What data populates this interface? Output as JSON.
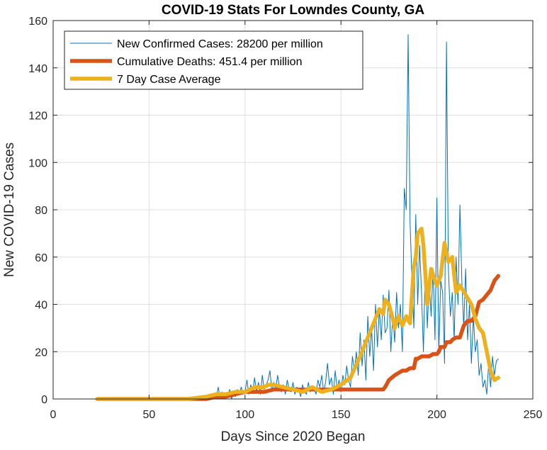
{
  "chart_data": {
    "type": "line",
    "title": "COVID-19 Stats For Lowndes County, GA",
    "xlabel": "Days Since 2020 Began",
    "ylabel": "New COVID-19 Cases",
    "xlim": [
      0,
      250
    ],
    "ylim": [
      0,
      160
    ],
    "xticks": [
      0,
      50,
      100,
      150,
      200,
      250
    ],
    "yticks": [
      0,
      20,
      40,
      60,
      80,
      100,
      120,
      140,
      160
    ],
    "grid": true,
    "legend_position": "top-left",
    "series": [
      {
        "name": "New Confirmed Cases: 28200 per million",
        "color": "#0072BD",
        "line_style": "thin",
        "x": [
          23,
          30,
          40,
          50,
          60,
          70,
          75,
          80,
          84,
          85,
          86,
          87,
          88,
          89,
          90,
          91,
          92,
          93,
          94,
          95,
          96,
          97,
          98,
          99,
          100,
          101,
          102,
          103,
          104,
          105,
          106,
          107,
          108,
          109,
          110,
          111,
          112,
          113,
          114,
          115,
          116,
          117,
          118,
          119,
          120,
          121,
          122,
          123,
          124,
          125,
          126,
          127,
          128,
          129,
          130,
          131,
          132,
          133,
          134,
          135,
          136,
          137,
          138,
          139,
          140,
          141,
          142,
          143,
          144,
          145,
          146,
          147,
          148,
          149,
          150,
          151,
          152,
          153,
          154,
          155,
          156,
          157,
          158,
          159,
          160,
          161,
          162,
          163,
          164,
          165,
          166,
          167,
          168,
          169,
          170,
          171,
          172,
          173,
          174,
          175,
          176,
          177,
          178,
          179,
          180,
          181,
          182,
          183,
          184,
          185,
          186,
          187,
          188,
          189,
          190,
          191,
          192,
          193,
          194,
          195,
          196,
          197,
          198,
          199,
          200,
          201,
          202,
          203,
          204,
          205,
          206,
          207,
          208,
          209,
          210,
          211,
          212,
          213,
          214,
          215,
          216,
          217,
          218,
          219,
          220,
          221,
          222,
          223,
          224,
          225,
          226,
          227,
          228,
          229,
          230,
          231,
          232
        ],
        "values": [
          0,
          0,
          0,
          0,
          0,
          0,
          0,
          0,
          2,
          0,
          5,
          1,
          3,
          0,
          2,
          1,
          4,
          0,
          3,
          1,
          4,
          2,
          5,
          2,
          3,
          8,
          2,
          6,
          3,
          9,
          3,
          7,
          2,
          10,
          4,
          6,
          8,
          12,
          3,
          7,
          4,
          10,
          5,
          3,
          6,
          2,
          8,
          4,
          3,
          7,
          2,
          5,
          4,
          1,
          6,
          3,
          2,
          7,
          3,
          5,
          4,
          2,
          8,
          5,
          10,
          3,
          7,
          15,
          6,
          9,
          2,
          12,
          4,
          8,
          3,
          10,
          6,
          14,
          8,
          5,
          18,
          12,
          20,
          10,
          28,
          14,
          25,
          8,
          35,
          18,
          30,
          12,
          40,
          22,
          38,
          25,
          44,
          28,
          30,
          46,
          20,
          36,
          24,
          45,
          30,
          40,
          20,
          89,
          80,
          154,
          75,
          50,
          30,
          78,
          40,
          65,
          45,
          20,
          60,
          30,
          50,
          35,
          55,
          25,
          85,
          20,
          50,
          45,
          15,
          151,
          55,
          35,
          45,
          25,
          60,
          40,
          82,
          50,
          30,
          55,
          25,
          40,
          15,
          35,
          20,
          25,
          10,
          15,
          5,
          8,
          2,
          15,
          5,
          18,
          10,
          16,
          17
        ]
      },
      {
        "name": "Cumulative Deaths: 451.4 per million",
        "color": "#D95319",
        "line_style": "thick",
        "x": [
          23,
          70,
          80,
          85,
          90,
          95,
          100,
          105,
          110,
          115,
          120,
          150,
          172,
          173,
          175,
          178,
          180,
          182,
          184,
          186,
          188,
          189,
          190,
          192,
          194,
          196,
          198,
          200,
          201,
          202,
          204,
          205,
          207,
          208,
          210,
          212,
          214,
          215,
          216,
          218,
          220,
          221,
          222,
          224,
          226,
          228,
          230,
          232
        ],
        "values": [
          0,
          0,
          0,
          1,
          1,
          2,
          3,
          3,
          3,
          4,
          4,
          4,
          4,
          5,
          8,
          10,
          11,
          12,
          12,
          13,
          13,
          17,
          17,
          18,
          18,
          18,
          19,
          19,
          20,
          22,
          22,
          24,
          24,
          25,
          26,
          26,
          31,
          32,
          33,
          33,
          35,
          38,
          41,
          42,
          44,
          46,
          50,
          52
        ]
      },
      {
        "name": "7 Day Case Average",
        "color": "#EDB120",
        "line_style": "thick",
        "x": [
          23,
          70,
          80,
          85,
          90,
          95,
          100,
          105,
          110,
          112,
          115,
          120,
          125,
          130,
          135,
          140,
          145,
          150,
          155,
          160,
          163,
          165,
          167,
          170,
          172,
          173,
          175,
          177,
          178,
          180,
          182,
          184,
          186,
          188,
          189,
          190,
          192,
          193,
          195,
          197,
          199,
          200,
          202,
          204,
          206,
          208,
          210,
          212,
          215,
          218,
          220,
          222,
          224,
          226,
          228,
          230,
          232
        ],
        "values": [
          0,
          0,
          1,
          2,
          2,
          3,
          3,
          5,
          5,
          6,
          6,
          5,
          4,
          3,
          5,
          3,
          4,
          6,
          9,
          18,
          24,
          28,
          32,
          38,
          36,
          42,
          40,
          34,
          30,
          35,
          31,
          35,
          32,
          56,
          60,
          70,
          72,
          65,
          40,
          55,
          50,
          48,
          52,
          66,
          58,
          60,
          45,
          48,
          44,
          40,
          34,
          30,
          28,
          20,
          12,
          8,
          9
        ]
      }
    ]
  }
}
